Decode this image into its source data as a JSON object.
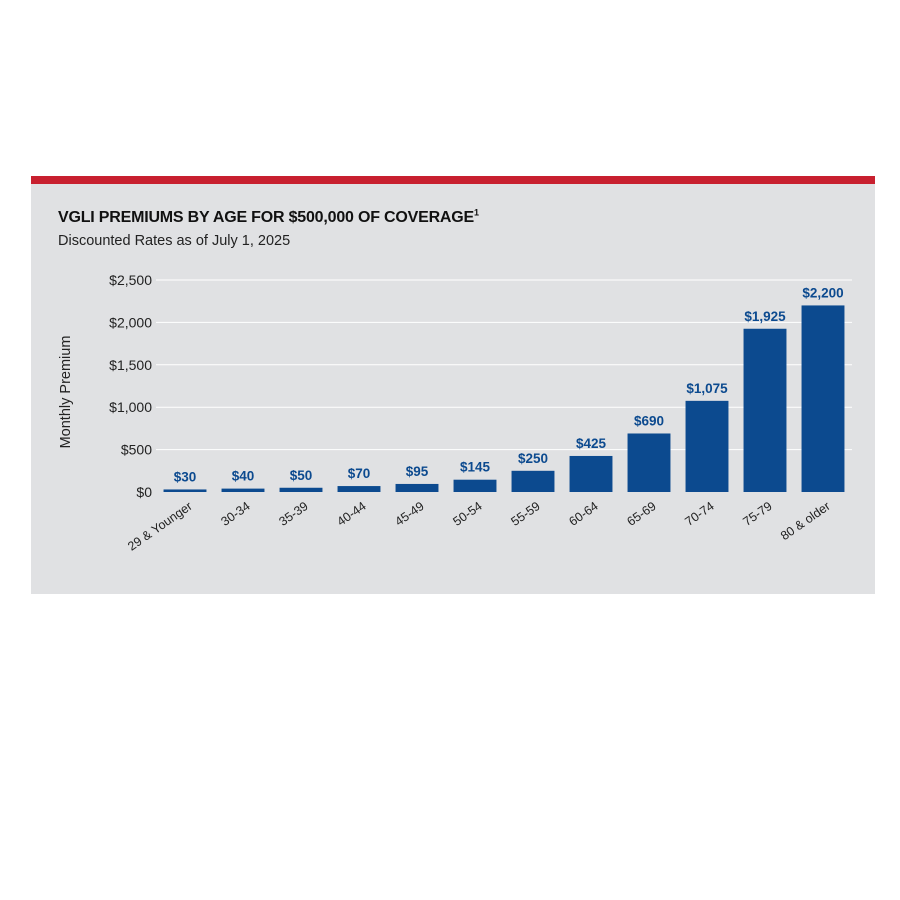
{
  "colors": {
    "accent_bar": "#c8202f",
    "panel_bg": "#e0e1e3",
    "bar_fill": "#0c4a8f",
    "data_label": "#0c4a8f",
    "gridline": "#ffffff"
  },
  "chart_data": {
    "type": "bar",
    "title": "VGLI PREMIUMS BY AGE FOR $500,000 OF COVERAGE",
    "title_footnote": "1",
    "subtitle": "Discounted Rates as of July 1, 2025",
    "xlabel": "",
    "ylabel": "Monthly Premium",
    "ylim": [
      0,
      2500
    ],
    "y_ticks": [
      0,
      500,
      1000,
      1500,
      2000,
      2500
    ],
    "y_tick_labels": [
      "$0",
      "$500",
      "$1,000",
      "$1,500",
      "$2,000",
      "$2,500"
    ],
    "grid": true,
    "categories": [
      "29 & Younger",
      "30-34",
      "35-39",
      "40-44",
      "45-49",
      "50-54",
      "55-59",
      "60-64",
      "65-69",
      "70-74",
      "75-79",
      "80 & older"
    ],
    "values": [
      30,
      40,
      50,
      70,
      95,
      145,
      250,
      425,
      690,
      1075,
      1925,
      2200
    ],
    "data_labels": [
      "$30",
      "$40",
      "$50",
      "$70",
      "$95",
      "$145",
      "$250",
      "$425",
      "$690",
      "$1,075",
      "$1,925",
      "$2,200"
    ]
  }
}
